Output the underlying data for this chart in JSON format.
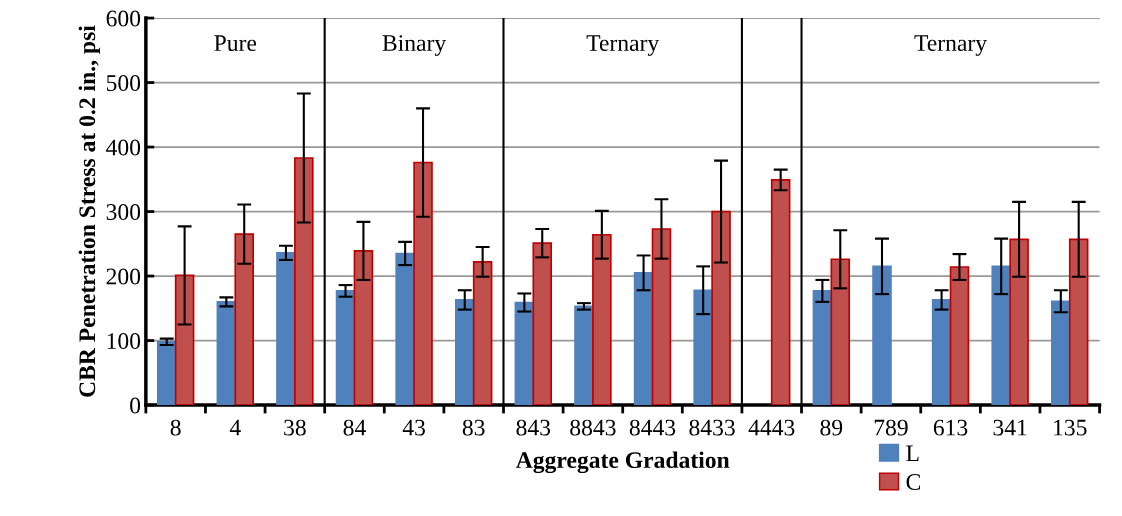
{
  "chart_data": {
    "type": "bar",
    "xlabel": "Aggregate Gradation",
    "ylabel": "CBR Penetration Stress at 0.2 in., psi",
    "categories": [
      "8",
      "4",
      "38",
      "84",
      "43",
      "83",
      "843",
      "8843",
      "8443",
      "8433",
      "4443",
      "89",
      "789",
      "613",
      "341",
      "135"
    ],
    "series": [
      {
        "name": "L",
        "color": "#4f81bd",
        "values": [
          98,
          160,
          236,
          177,
          235,
          163,
          159,
          153,
          205,
          178,
          null,
          177,
          215,
          163,
          215,
          161
        ],
        "errors": [
          5,
          7,
          11,
          9,
          18,
          15,
          14,
          5,
          27,
          37,
          null,
          17,
          43,
          15,
          43,
          17
        ]
      },
      {
        "name": "C",
        "color": "#c0504d",
        "values": [
          201,
          265,
          383,
          239,
          376,
          222,
          251,
          264,
          273,
          300,
          349,
          226,
          null,
          214,
          257,
          257
        ],
        "errors": [
          76,
          46,
          100,
          45,
          84,
          23,
          22,
          37,
          46,
          79,
          16,
          45,
          null,
          20,
          58,
          58
        ]
      }
    ],
    "ylim": [
      0,
      600
    ],
    "yticks": [
      0,
      100,
      200,
      300,
      400,
      500,
      600
    ],
    "grid": "y",
    "legend": "bottom right",
    "annotations": [
      "Pure",
      "Binary",
      "Ternary",
      "Ternary"
    ]
  }
}
